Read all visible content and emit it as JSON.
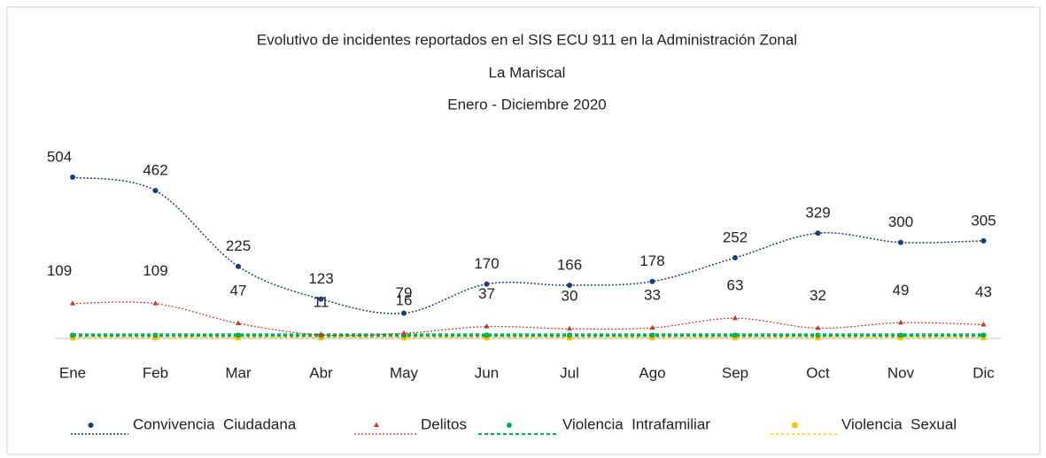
{
  "chart_data": {
    "type": "line",
    "title": [
      "Evolutivo  de incidentes  reportados  en el SIS ECU 911 en la Administración  Zonal",
      "La Mariscal",
      "Enero - Diciembre  2020"
    ],
    "categories": [
      "Ene",
      "Feb",
      "Mar",
      "Abr",
      "May",
      "Jun",
      "Jul",
      "Ago",
      "Sep",
      "Oct",
      "Nov",
      "Dic"
    ],
    "series": [
      {
        "name": "Convivencia  Ciudadana",
        "color": "#1f3a7a",
        "values": [
          504,
          462,
          225,
          123,
          79,
          170,
          166,
          178,
          252,
          329,
          300,
          305
        ],
        "labels": true
      },
      {
        "name": "Delitos",
        "color": "#c0392b",
        "values": [
          109,
          109,
          47,
          11,
          16,
          37,
          30,
          33,
          63,
          32,
          49,
          43
        ],
        "labels": true
      },
      {
        "name": "Violencia  Intrafamiliar",
        "color": "#00b050",
        "values": [
          10,
          10,
          10,
          10,
          10,
          10,
          10,
          10,
          10,
          10,
          10,
          10
        ],
        "labels": false
      },
      {
        "name": "Violencia  Sexual",
        "color": "#ffc000",
        "values": [
          2,
          2,
          2,
          2,
          2,
          2,
          2,
          2,
          2,
          2,
          2,
          2
        ],
        "labels": false
      }
    ]
  }
}
